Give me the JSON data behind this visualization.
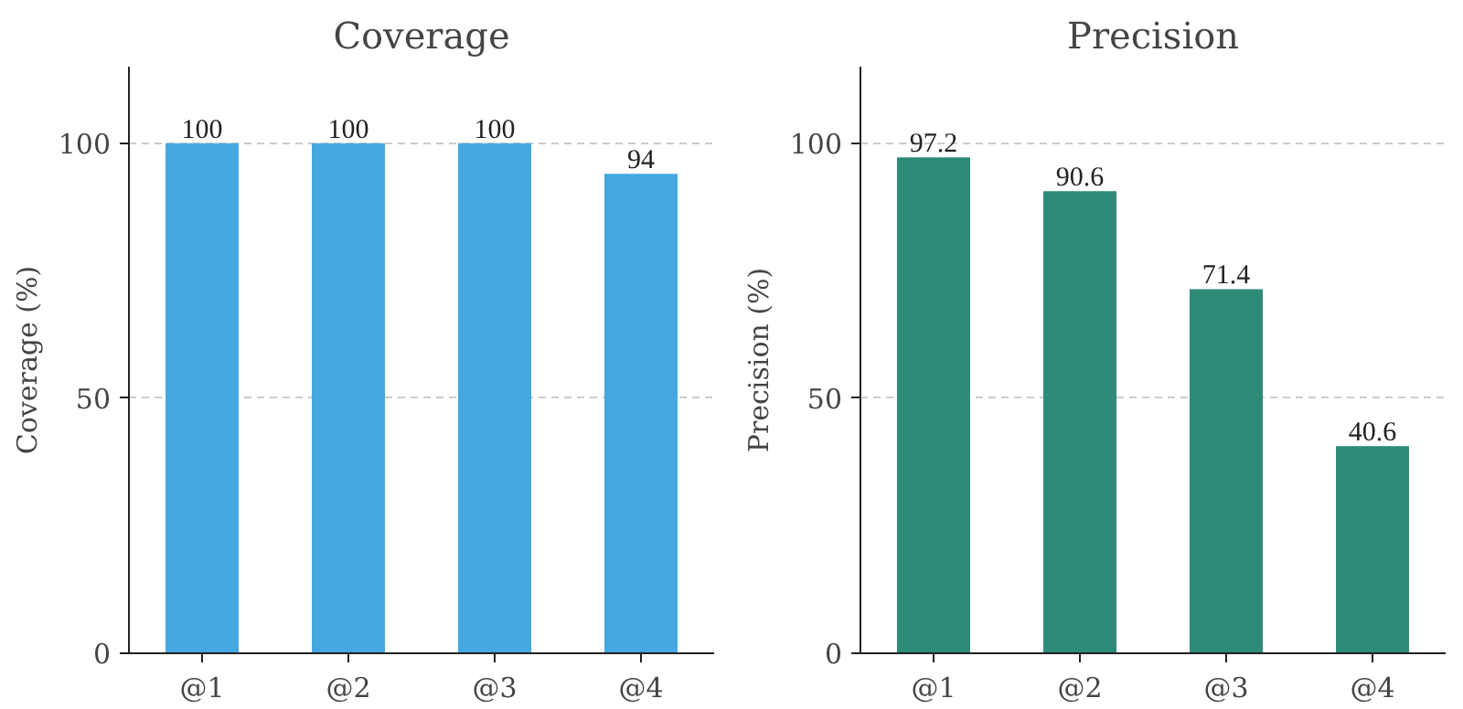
{
  "chart_data": [
    {
      "type": "bar",
      "title": "Coverage",
      "ylabel": "Coverage (%)",
      "categories": [
        "@1",
        "@2",
        "@3",
        "@4"
      ],
      "values": [
        100,
        100,
        100,
        94
      ],
      "color": "#45a8e0",
      "ylim": [
        0,
        115
      ],
      "yticks": [
        0,
        50,
        100
      ],
      "grid": "y",
      "data_labels": true
    },
    {
      "type": "bar",
      "title": "Precision",
      "ylabel": "Precision (%)",
      "categories": [
        "@1",
        "@2",
        "@3",
        "@4"
      ],
      "values": [
        97.2,
        90.6,
        71.4,
        40.6
      ],
      "color": "#2e8b78",
      "ylim": [
        0,
        115
      ],
      "yticks": [
        0,
        50,
        100
      ],
      "grid": "y",
      "data_labels": true
    }
  ]
}
